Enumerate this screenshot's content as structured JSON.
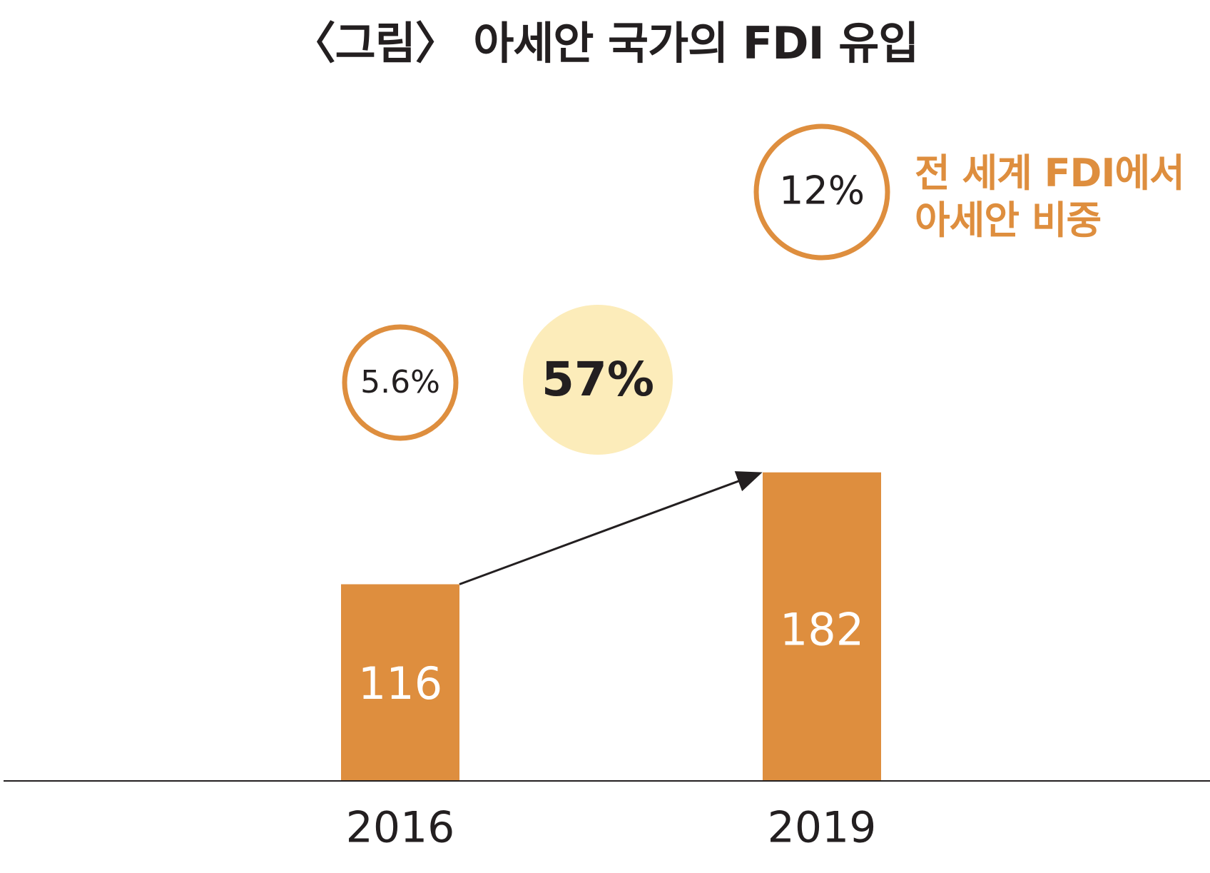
{
  "chart_data": {
    "type": "bar",
    "title": "〈그림〉 아세안 국가의 FDI 유입",
    "categories": [
      "2016",
      "2019"
    ],
    "values": [
      116,
      182
    ],
    "value_labels": [
      "116",
      "182"
    ],
    "share_labels": [
      "5.6%",
      "12%"
    ],
    "growth_label": "57%",
    "share_note": [
      "전 세계 FDI에서",
      "아세안 비중"
    ],
    "xlabel": "",
    "ylabel": "",
    "ylim": [
      0,
      200
    ],
    "grid": false,
    "legend": "none",
    "colors": {
      "bar": "#de8e3e",
      "circle_stroke": "#de8e3e",
      "growth_circle_fill": "#fcecba",
      "note_text": "#de8e3e",
      "text": "#231f20",
      "bar_label": "#ffffff",
      "axis": "#231f20"
    }
  }
}
